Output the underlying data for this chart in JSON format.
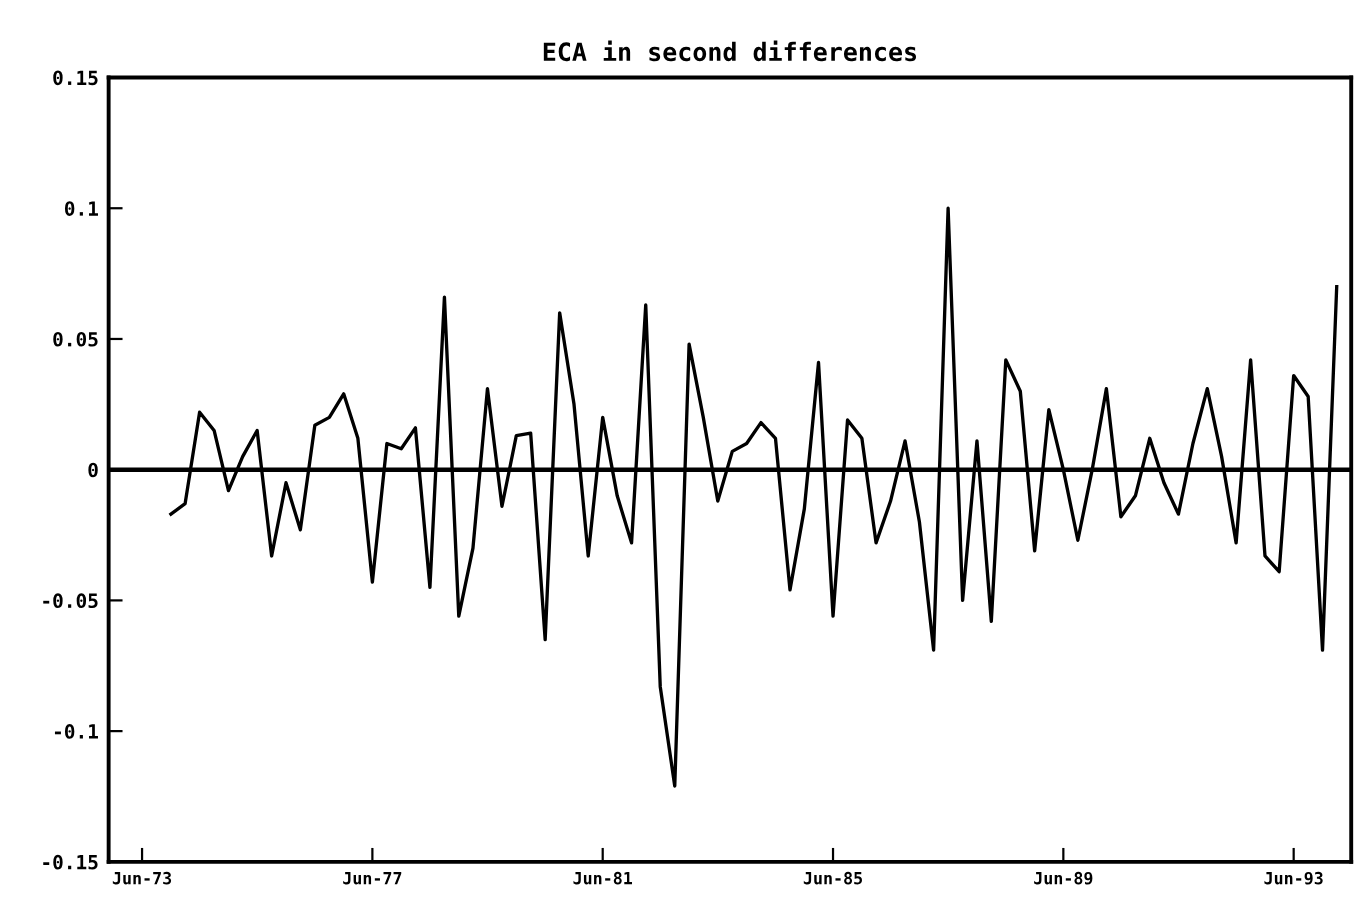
{
  "chart_data": {
    "type": "line",
    "title": "ECA in second differences",
    "x": [
      "1973-12",
      "1974-03",
      "1974-06",
      "1974-09",
      "1974-12",
      "1975-03",
      "1975-06",
      "1975-09",
      "1975-12",
      "1976-03",
      "1976-06",
      "1976-09",
      "1976-12",
      "1977-03",
      "1977-06",
      "1977-09",
      "1977-12",
      "1978-03",
      "1978-06",
      "1978-09",
      "1978-12",
      "1979-03",
      "1979-06",
      "1979-09",
      "1979-12",
      "1980-03",
      "1980-06",
      "1980-09",
      "1980-12",
      "1981-03",
      "1981-06",
      "1981-09",
      "1981-12",
      "1982-03",
      "1982-06",
      "1982-09",
      "1982-12",
      "1983-03",
      "1983-06",
      "1983-09",
      "1983-12",
      "1984-03",
      "1984-06",
      "1984-09",
      "1984-12",
      "1985-03",
      "1985-06",
      "1985-09",
      "1985-12",
      "1986-03",
      "1986-06",
      "1986-09",
      "1986-12",
      "1987-03",
      "1987-06",
      "1987-09",
      "1987-12",
      "1988-03",
      "1988-06",
      "1988-09",
      "1988-12",
      "1989-03",
      "1989-06",
      "1989-09",
      "1989-12",
      "1990-03",
      "1990-06",
      "1990-09",
      "1990-12",
      "1991-03",
      "1991-06",
      "1991-09",
      "1991-12",
      "1992-03",
      "1992-06",
      "1992-09",
      "1992-12",
      "1993-03",
      "1993-06",
      "1993-09",
      "1993-12",
      "1994-03"
    ],
    "series": [
      {
        "color": "#000000",
        "values": [
          -0.017,
          -0.013,
          0.022,
          0.015,
          -0.008,
          0.005,
          0.015,
          -0.033,
          -0.005,
          -0.023,
          0.017,
          0.02,
          0.029,
          0.012,
          -0.043,
          0.01,
          0.008,
          0.016,
          -0.045,
          0.066,
          -0.056,
          -0.03,
          0.031,
          -0.014,
          0.013,
          0.014,
          -0.065,
          0.06,
          0.025,
          -0.033,
          0.02,
          -0.01,
          -0.028,
          0.063,
          -0.083,
          -0.121,
          0.048,
          0.02,
          -0.012,
          0.007,
          0.01,
          0.018,
          0.012,
          -0.046,
          -0.015,
          0.041,
          -0.056,
          0.019,
          0.012,
          -0.028,
          -0.012,
          0.011,
          -0.02,
          -0.069,
          0.1,
          -0.05,
          0.011,
          -0.058,
          0.042,
          0.03,
          -0.031,
          0.023,
          0.0,
          -0.027,
          0.0,
          0.031,
          -0.018,
          -0.01,
          0.012,
          -0.005,
          -0.017,
          0.01,
          0.031,
          0.005,
          -0.028,
          0.042,
          -0.033,
          -0.039,
          0.036,
          0.028,
          -0.069,
          0.07
        ]
      }
    ],
    "xlim": [
      "1972-11",
      "1994-06"
    ],
    "xticks": [
      {
        "value": "1973-06",
        "label": "Jun-73"
      },
      {
        "value": "1977-06",
        "label": "Jun-77"
      },
      {
        "value": "1981-06",
        "label": "Jun-81"
      },
      {
        "value": "1985-06",
        "label": "Jun-85"
      },
      {
        "value": "1989-06",
        "label": "Jun-89"
      },
      {
        "value": "1993-06",
        "label": "Jun-93"
      }
    ],
    "ylim": [
      -0.15,
      0.15
    ],
    "yticks": [
      -0.15,
      -0.1,
      -0.05,
      0,
      0.05,
      0.1,
      0.15
    ],
    "ref_lines": [
      {
        "axis": "y",
        "value": 0,
        "color": "#000000"
      }
    ],
    "grid": false,
    "legend": false,
    "marker": "none",
    "line_style": "solid"
  }
}
